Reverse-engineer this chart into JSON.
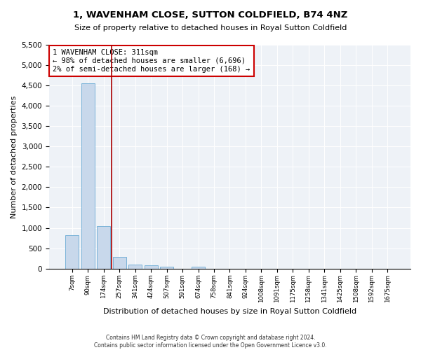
{
  "title": "1, WAVENHAM CLOSE, SUTTON COLDFIELD, B74 4NZ",
  "subtitle": "Size of property relative to detached houses in Royal Sutton Coldfield",
  "xlabel": "Distribution of detached houses by size in Royal Sutton Coldfield",
  "ylabel": "Number of detached properties",
  "footer_line1": "Contains HM Land Registry data © Crown copyright and database right 2024.",
  "footer_line2": "Contains public sector information licensed under the Open Government Licence v3.0.",
  "annotation_title": "1 WAVENHAM CLOSE: 311sqm",
  "annotation_line1": "← 98% of detached houses are smaller (6,696)",
  "annotation_line2": "2% of semi-detached houses are larger (168) →",
  "bar_color": "#c8d8eb",
  "bar_edge_color": "#6aaad4",
  "vline_color": "#aa0000",
  "annotation_box_color": "#cc0000",
  "ylim": [
    0,
    5500
  ],
  "yticks": [
    0,
    500,
    1000,
    1500,
    2000,
    2500,
    3000,
    3500,
    4000,
    4500,
    5000,
    5500
  ],
  "bin_labels": [
    "7sqm",
    "90sqm",
    "174sqm",
    "257sqm",
    "341sqm",
    "424sqm",
    "507sqm",
    "591sqm",
    "674sqm",
    "758sqm",
    "841sqm",
    "924sqm",
    "1008sqm",
    "1091sqm",
    "1175sqm",
    "1258sqm",
    "1341sqm",
    "1425sqm",
    "1508sqm",
    "1592sqm",
    "1675sqm"
  ],
  "bar_heights": [
    820,
    4560,
    1040,
    280,
    90,
    75,
    50,
    0,
    50,
    0,
    0,
    0,
    0,
    0,
    0,
    0,
    0,
    0,
    0,
    0,
    0
  ],
  "n_bins": 21,
  "vline_pos": 2.5
}
